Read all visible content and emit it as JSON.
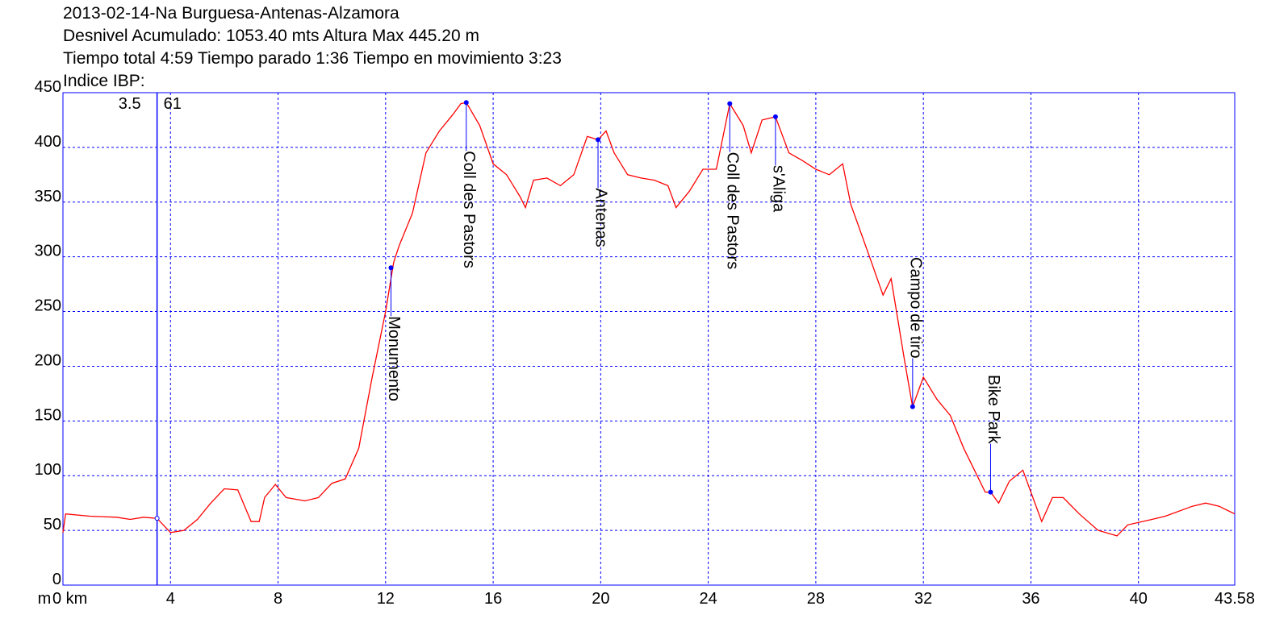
{
  "chart_data": {
    "type": "line",
    "title_lines": [
      "2013-02-14-Na Burguesa-Antenas-Alzamora",
      "Desnivel Acumulado: 1053.40 mts  Altura Max 445.20 m",
      "Tiempo total 4:59 Tiempo parado 1:36 Tiempo en movimiento 3:23",
      "Indice IBP:"
    ],
    "ylabel": "m",
    "color": "#ff0000",
    "axis_color": "#0000ff",
    "grid": true,
    "xlim": [
      0,
      43.58
    ],
    "ylim": [
      0,
      450
    ],
    "xticks": [
      {
        "value": 0,
        "label": "0 km"
      },
      4,
      8,
      12,
      16,
      20,
      24,
      28,
      32,
      36,
      40,
      43.58
    ],
    "yticks": [
      0,
      50,
      100,
      150,
      200,
      250,
      300,
      350,
      400,
      450
    ],
    "x": [
      0,
      0.1,
      1,
      2,
      2.5,
      3,
      3.5,
      4,
      4.5,
      5,
      5.5,
      6,
      6.5,
      7,
      7.3,
      7.5,
      7.9,
      8.3,
      9,
      9.5,
      10,
      10.5,
      11,
      11.5,
      12,
      12.3,
      12.5,
      13,
      13.5,
      14,
      14.5,
      14.8,
      15,
      15.5,
      16,
      16.5,
      17,
      17.2,
      17.5,
      18,
      18.5,
      19,
      19.5,
      19.9,
      20.2,
      20.5,
      21,
      21.5,
      22,
      22.5,
      22.8,
      23.3,
      23.8,
      24.3,
      24.8,
      25.3,
      25.6,
      26,
      26.5,
      27,
      27.5,
      28,
      28.5,
      29,
      29.3,
      30,
      30.5,
      30.8,
      31,
      31.3,
      31.6,
      32,
      32.5,
      33,
      33.5,
      34,
      34.3,
      34.5,
      34.8,
      35.2,
      35.7,
      36,
      36.4,
      36.8,
      37.2,
      37.8,
      38.5,
      39.2,
      39.6,
      40.5,
      41,
      42,
      42.5,
      43,
      43.58
    ],
    "values": [
      48,
      65,
      63,
      62,
      60,
      62,
      61,
      48,
      50,
      60,
      75,
      88,
      87,
      58,
      58,
      80,
      92,
      80,
      77,
      80,
      93,
      97,
      125,
      190,
      250,
      295,
      310,
      340,
      395,
      415,
      430,
      440,
      441,
      420,
      385,
      375,
      355,
      345,
      370,
      372,
      365,
      375,
      410,
      407,
      415,
      395,
      375,
      372,
      370,
      365,
      345,
      360,
      380,
      380,
      440,
      420,
      395,
      425,
      428,
      395,
      388,
      380,
      375,
      385,
      348,
      300,
      265,
      280,
      250,
      205,
      163,
      190,
      170,
      155,
      125,
      100,
      85,
      85,
      75,
      95,
      105,
      85,
      58,
      80,
      80,
      65,
      50,
      45,
      55,
      60,
      63,
      72,
      75,
      72,
      65
    ],
    "cursor": {
      "x": 3.5,
      "y": 61
    },
    "waypoints": [
      {
        "label": "Monumento",
        "x": 12.2,
        "y": 290
      },
      {
        "label": "Coll des Pastors",
        "x": 15,
        "y": 441
      },
      {
        "label": "Antenas",
        "x": 19.9,
        "y": 407
      },
      {
        "label": "Coll des Pastors",
        "x": 24.8,
        "y": 440
      },
      {
        "label": "s'Aliga",
        "x": 26.5,
        "y": 428
      },
      {
        "label": "Campo de tiro",
        "x": 31.6,
        "y": 163
      },
      {
        "label": "Bike Park",
        "x": 34.5,
        "y": 85
      }
    ]
  }
}
